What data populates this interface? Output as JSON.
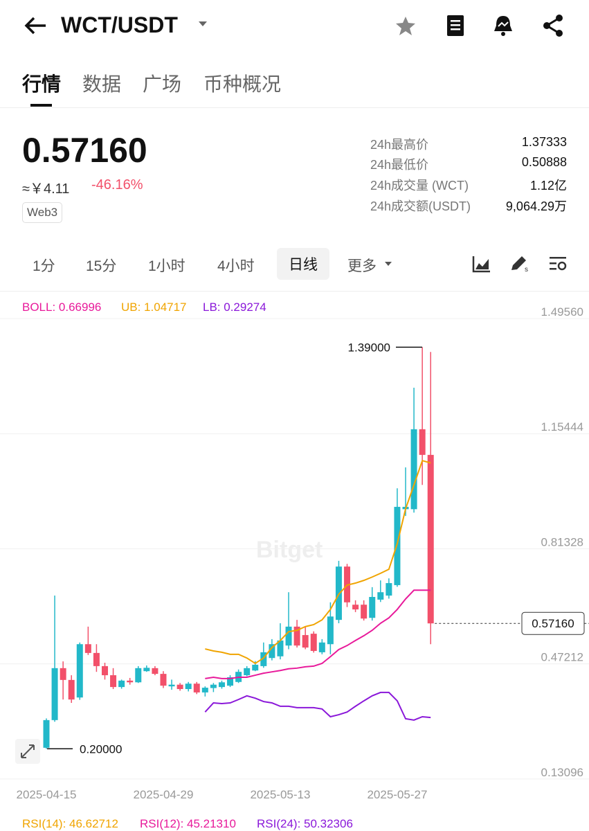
{
  "header": {
    "title": "WCT/USDT"
  },
  "tabs": [
    "行情",
    "数据",
    "广场",
    "币种概况"
  ],
  "ticker": {
    "price": "0.57160",
    "cny": "≈￥4.11",
    "change": "-46.16%",
    "tag": "Web3"
  },
  "stats": [
    [
      "24h最高价",
      "1.37333"
    ],
    [
      "24h最低价",
      "0.50888"
    ],
    [
      "24h成交量 (WCT)",
      "1.12亿"
    ],
    [
      "24h成交额(USDT)",
      "9,064.29万"
    ]
  ],
  "timeframes": [
    "1分",
    "15分",
    "1小时",
    "4小时",
    "日线",
    "更多"
  ],
  "watermark": "Bitget",
  "chart_data": {
    "type": "candlestick",
    "indicator_labels": [
      "BOLL: 0.66996",
      "UB: 1.04717",
      "LB: 0.29274"
    ],
    "categories": [
      "2025-04-15",
      null,
      null,
      null,
      null,
      null,
      null,
      null,
      null,
      null,
      null,
      null,
      null,
      null,
      "2025-04-29",
      null,
      null,
      null,
      null,
      null,
      null,
      null,
      null,
      null,
      null,
      null,
      null,
      null,
      "2025-05-13",
      null,
      null,
      null,
      null,
      null,
      null,
      null,
      null,
      null,
      null,
      null,
      null,
      null,
      "2025-05-27",
      null,
      null,
      null,
      null
    ],
    "open": [
      0.203,
      0.285,
      0.439,
      0.404,
      0.352,
      0.51,
      0.484,
      0.445,
      0.418,
      0.383,
      0.402,
      0.397,
      0.43,
      0.439,
      0.422,
      0.385,
      0.39,
      0.377,
      0.393,
      0.367,
      0.38,
      0.383,
      0.387,
      0.398,
      0.418,
      0.432,
      0.445,
      0.469,
      0.474,
      0.506,
      0.562,
      0.537,
      0.541,
      0.486,
      0.51,
      0.582,
      0.74,
      0.627,
      0.627,
      0.588,
      0.642,
      0.654,
      0.685,
      0.91,
      0.91,
      1.147,
      1.071
    ],
    "high": [
      0.29,
      0.654,
      0.459,
      0.418,
      0.515,
      0.562,
      0.51,
      0.455,
      0.439,
      0.405,
      0.41,
      0.445,
      0.447,
      0.445,
      0.43,
      0.405,
      0.395,
      0.398,
      0.398,
      0.385,
      0.395,
      0.402,
      0.418,
      0.435,
      0.445,
      0.46,
      0.515,
      0.525,
      0.572,
      0.664,
      0.582,
      0.562,
      0.548,
      0.525,
      0.634,
      0.757,
      0.748,
      0.64,
      0.64,
      0.679,
      0.699,
      0.705,
      0.972,
      1.034,
      1.27,
      1.39,
      1.376
    ],
    "low": [
      0.2,
      0.28,
      0.346,
      0.336,
      0.345,
      0.478,
      0.428,
      0.405,
      0.377,
      0.378,
      0.39,
      0.395,
      0.428,
      0.418,
      0.38,
      0.375,
      0.372,
      0.37,
      0.362,
      0.355,
      0.368,
      0.378,
      0.383,
      0.395,
      0.415,
      0.43,
      0.44,
      0.462,
      0.465,
      0.495,
      0.5,
      0.495,
      0.485,
      0.48,
      0.48,
      0.572,
      0.62,
      0.605,
      0.58,
      0.58,
      0.635,
      0.645,
      0.68,
      0.89,
      0.9,
      0.982,
      0.51
    ],
    "close": [
      0.285,
      0.439,
      0.404,
      0.346,
      0.51,
      0.484,
      0.445,
      0.418,
      0.383,
      0.402,
      0.397,
      0.439,
      0.44,
      0.422,
      0.387,
      0.39,
      0.377,
      0.393,
      0.367,
      0.381,
      0.39,
      0.397,
      0.412,
      0.428,
      0.439,
      0.449,
      0.486,
      0.51,
      0.521,
      0.562,
      0.506,
      0.5,
      0.49,
      0.515,
      0.592,
      0.74,
      0.634,
      0.613,
      0.586,
      0.65,
      0.664,
      0.691,
      0.917,
      0.917,
      1.147,
      1.071,
      0.5716
    ],
    "up_color": "#22b8c9",
    "down_color": "#f2506a",
    "series": [
      {
        "name": "UB",
        "color": "#f0a400",
        "values": [
          null,
          null,
          null,
          null,
          null,
          null,
          null,
          null,
          null,
          null,
          null,
          null,
          null,
          null,
          null,
          null,
          null,
          null,
          null,
          0.496,
          0.49,
          0.486,
          0.48,
          0.48,
          0.469,
          0.453,
          0.469,
          0.5,
          0.521,
          0.547,
          0.551,
          0.562,
          0.568,
          0.582,
          0.613,
          0.658,
          0.685,
          0.691,
          0.699,
          0.709,
          0.72,
          0.732,
          0.808,
          0.911,
          0.982,
          1.054,
          1.04717
        ]
      },
      {
        "name": "BOLL",
        "color": "#e8199a",
        "values": [
          null,
          null,
          null,
          null,
          null,
          null,
          null,
          null,
          null,
          null,
          null,
          null,
          null,
          null,
          null,
          null,
          null,
          null,
          null,
          0.408,
          0.412,
          0.408,
          0.408,
          0.412,
          0.412,
          0.418,
          0.424,
          0.428,
          0.432,
          0.437,
          0.439,
          0.443,
          0.445,
          0.453,
          0.473,
          0.494,
          0.506,
          0.521,
          0.535,
          0.551,
          0.572,
          0.588,
          0.613,
          0.644,
          0.67,
          0.67,
          0.66996
        ]
      },
      {
        "name": "LB",
        "color": "#8a17d9",
        "values": [
          null,
          null,
          null,
          null,
          null,
          null,
          null,
          null,
          null,
          null,
          null,
          null,
          null,
          null,
          null,
          null,
          null,
          null,
          null,
          0.309,
          0.336,
          0.334,
          0.336,
          0.346,
          0.357,
          0.35,
          0.34,
          0.336,
          0.326,
          0.326,
          0.322,
          0.322,
          0.322,
          0.318,
          0.295,
          0.301,
          0.309,
          0.326,
          0.342,
          0.357,
          0.367,
          0.367,
          0.342,
          0.289,
          0.285,
          0.295,
          0.29274
        ]
      }
    ],
    "ylim": [
      0.1,
      1.5366
    ],
    "yticks": [
      {
        "value": 1.4956,
        "label": "1.49560"
      },
      {
        "value": 1.15444,
        "label": "1.15444"
      },
      {
        "value": 0.81328,
        "label": "0.81328"
      },
      {
        "value": 0.47212,
        "label": "0.47212"
      },
      {
        "value": 0.13096,
        "label": "0.13096"
      }
    ],
    "grid": true,
    "max_marker": {
      "value": 1.39,
      "label": "1.39000"
    },
    "min_marker": {
      "value": 0.2,
      "label": "0.20000"
    },
    "last_marker": {
      "value": 0.5716,
      "label": "0.57160"
    }
  },
  "rsi": [
    "RSI(14): 46.62712",
    "RSI(12): 45.21310",
    "RSI(24): 50.32306"
  ]
}
